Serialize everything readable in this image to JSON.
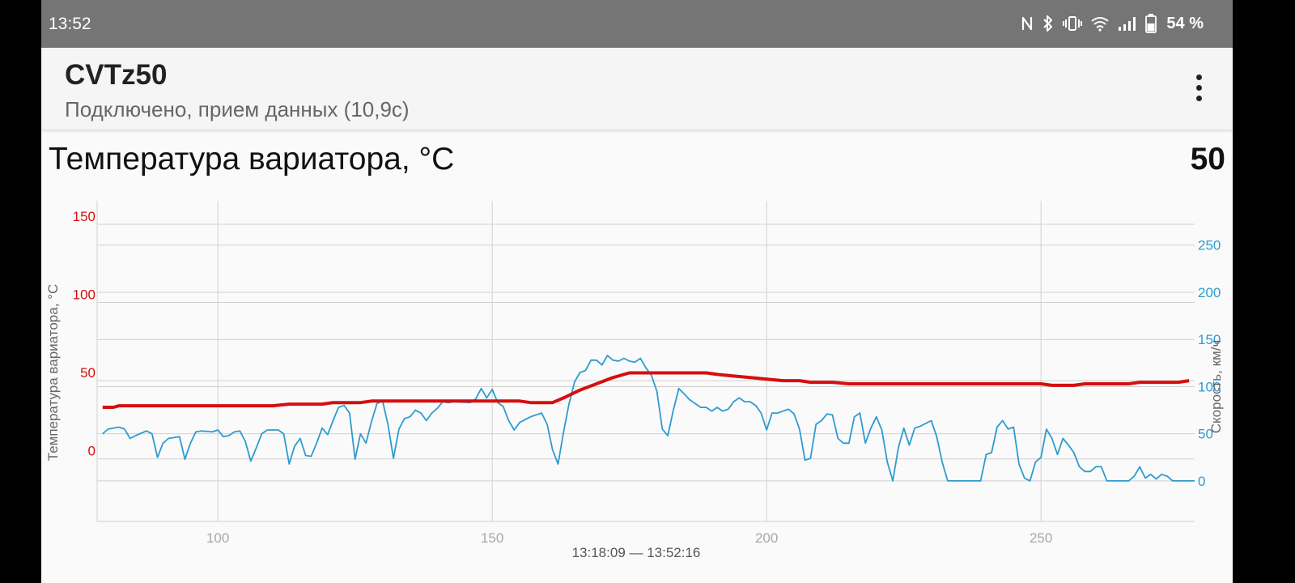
{
  "status_bar": {
    "time": "13:52",
    "battery_text": "54 %",
    "icons": [
      "nfc-icon",
      "bluetooth-icon",
      "vibrate-icon",
      "wifi-icon",
      "signal-icon",
      "battery-icon"
    ]
  },
  "app_bar": {
    "title": "CVTz50",
    "subtitle": "Подключено, прием данных (10,9с)",
    "menu_icon": "more-vert-icon"
  },
  "section": {
    "title": "Температура вариатора, °C",
    "value": "50"
  },
  "colors": {
    "temperature": "#d50f0f",
    "speed": "#2e9bd0",
    "grid": "#d0d0d0",
    "axis_text": "#a8a8a8"
  },
  "chart_data": {
    "type": "line",
    "time_range_label": "13:18:09 — 13:52:16",
    "x_ticks": [
      100,
      150,
      200,
      250
    ],
    "xlim": [
      78,
      278
    ],
    "y_left": {
      "label": "Температура вариатора, °C",
      "ticks": [
        0,
        50,
        100,
        150
      ],
      "ylim": [
        -40,
        165
      ]
    },
    "y_right": {
      "label": "Скорость, км/ч",
      "ticks": [
        0,
        50,
        100,
        150,
        200,
        250
      ],
      "ylim": [
        -43,
        297
      ]
    },
    "series": [
      {
        "axis": "left",
        "points": [
          [
            79,
            33
          ],
          [
            81,
            33
          ],
          [
            82,
            34
          ],
          [
            90,
            34
          ],
          [
            100,
            34
          ],
          [
            110,
            34
          ],
          [
            113,
            35
          ],
          [
            119,
            35
          ],
          [
            121,
            36
          ],
          [
            126,
            36
          ],
          [
            128,
            37
          ],
          [
            140,
            37
          ],
          [
            155,
            37
          ],
          [
            157,
            36
          ],
          [
            161,
            36
          ],
          [
            163,
            39
          ],
          [
            166,
            44
          ],
          [
            169,
            48
          ],
          [
            172,
            52
          ],
          [
            175,
            55
          ],
          [
            178,
            55
          ],
          [
            182,
            55
          ],
          [
            186,
            55
          ],
          [
            189,
            55
          ],
          [
            191,
            54
          ],
          [
            194,
            53
          ],
          [
            197,
            52
          ],
          [
            200,
            51
          ],
          [
            203,
            50
          ],
          [
            206,
            50
          ],
          [
            208,
            49
          ],
          [
            212,
            49
          ],
          [
            215,
            48
          ],
          [
            220,
            48
          ],
          [
            230,
            48
          ],
          [
            240,
            48
          ],
          [
            250,
            48
          ],
          [
            252,
            47
          ],
          [
            256,
            47
          ],
          [
            258,
            48
          ],
          [
            262,
            48
          ],
          [
            266,
            48
          ],
          [
            268,
            49
          ],
          [
            275,
            49
          ],
          [
            277,
            50
          ]
        ]
      },
      {
        "axis": "right",
        "points": [
          [
            79,
            50
          ],
          [
            80,
            55
          ],
          [
            82,
            57
          ],
          [
            83,
            55
          ],
          [
            84,
            45
          ],
          [
            85,
            48
          ],
          [
            87,
            53
          ],
          [
            88,
            50
          ],
          [
            89,
            25
          ],
          [
            90,
            40
          ],
          [
            91,
            45
          ],
          [
            93,
            47
          ],
          [
            94,
            23
          ],
          [
            95,
            40
          ],
          [
            96,
            52
          ],
          [
            97,
            53
          ],
          [
            99,
            52
          ],
          [
            100,
            54
          ],
          [
            101,
            47
          ],
          [
            102,
            48
          ],
          [
            103,
            52
          ],
          [
            104,
            53
          ],
          [
            105,
            42
          ],
          [
            106,
            21
          ],
          [
            107,
            35
          ],
          [
            108,
            50
          ],
          [
            109,
            54
          ],
          [
            111,
            54
          ],
          [
            112,
            50
          ],
          [
            113,
            18
          ],
          [
            114,
            37
          ],
          [
            115,
            45
          ],
          [
            116,
            27
          ],
          [
            117,
            26
          ],
          [
            118,
            40
          ],
          [
            119,
            56
          ],
          [
            120,
            49
          ],
          [
            121,
            64
          ],
          [
            122,
            78
          ],
          [
            123,
            80
          ],
          [
            124,
            72
          ],
          [
            125,
            23
          ],
          [
            126,
            50
          ],
          [
            127,
            40
          ],
          [
            128,
            63
          ],
          [
            129,
            82
          ],
          [
            130,
            85
          ],
          [
            131,
            60
          ],
          [
            132,
            24
          ],
          [
            133,
            55
          ],
          [
            134,
            66
          ],
          [
            135,
            68
          ],
          [
            136,
            75
          ],
          [
            137,
            72
          ],
          [
            138,
            64
          ],
          [
            139,
            72
          ],
          [
            140,
            77
          ],
          [
            141,
            84
          ],
          [
            142,
            83
          ],
          [
            143,
            84
          ],
          [
            146,
            83
          ],
          [
            147,
            87
          ],
          [
            148,
            98
          ],
          [
            149,
            88
          ],
          [
            150,
            97
          ],
          [
            151,
            83
          ],
          [
            152,
            79
          ],
          [
            153,
            64
          ],
          [
            154,
            54
          ],
          [
            155,
            62
          ],
          [
            157,
            68
          ],
          [
            159,
            72
          ],
          [
            160,
            60
          ],
          [
            161,
            33
          ],
          [
            162,
            18
          ],
          [
            163,
            52
          ],
          [
            164,
            82
          ],
          [
            165,
            105
          ],
          [
            166,
            115
          ],
          [
            167,
            117
          ],
          [
            168,
            128
          ],
          [
            169,
            128
          ],
          [
            170,
            123
          ],
          [
            171,
            133
          ],
          [
            172,
            128
          ],
          [
            173,
            127
          ],
          [
            174,
            130
          ],
          [
            175,
            127
          ],
          [
            176,
            126
          ],
          [
            177,
            130
          ],
          [
            178,
            120
          ],
          [
            179,
            112
          ],
          [
            180,
            95
          ],
          [
            181,
            55
          ],
          [
            182,
            48
          ],
          [
            183,
            75
          ],
          [
            184,
            98
          ],
          [
            185,
            92
          ],
          [
            186,
            86
          ],
          [
            188,
            78
          ],
          [
            189,
            78
          ],
          [
            190,
            74
          ],
          [
            191,
            78
          ],
          [
            192,
            74
          ],
          [
            193,
            76
          ],
          [
            194,
            84
          ],
          [
            195,
            88
          ],
          [
            196,
            84
          ],
          [
            197,
            84
          ],
          [
            198,
            80
          ],
          [
            199,
            72
          ],
          [
            200,
            54
          ],
          [
            201,
            72
          ],
          [
            202,
            72
          ],
          [
            203,
            74
          ],
          [
            204,
            76
          ],
          [
            205,
            71
          ],
          [
            206,
            55
          ],
          [
            207,
            22
          ],
          [
            208,
            24
          ],
          [
            209,
            60
          ],
          [
            210,
            64
          ],
          [
            211,
            71
          ],
          [
            212,
            70
          ],
          [
            213,
            45
          ],
          [
            214,
            40
          ],
          [
            215,
            40
          ],
          [
            216,
            68
          ],
          [
            217,
            72
          ],
          [
            218,
            40
          ],
          [
            219,
            56
          ],
          [
            220,
            68
          ],
          [
            221,
            54
          ],
          [
            222,
            20
          ],
          [
            223,
            0
          ],
          [
            224,
            35
          ],
          [
            225,
            56
          ],
          [
            226,
            38
          ],
          [
            227,
            56
          ],
          [
            228,
            58
          ],
          [
            229,
            61
          ],
          [
            230,
            64
          ],
          [
            231,
            47
          ],
          [
            232,
            20
          ],
          [
            233,
            0
          ],
          [
            236,
            0
          ],
          [
            238,
            0
          ],
          [
            239,
            0
          ],
          [
            240,
            28
          ],
          [
            241,
            30
          ],
          [
            242,
            57
          ],
          [
            243,
            64
          ],
          [
            244,
            55
          ],
          [
            245,
            57
          ],
          [
            246,
            18
          ],
          [
            247,
            3
          ],
          [
            248,
            0
          ],
          [
            249,
            20
          ],
          [
            250,
            25
          ],
          [
            251,
            55
          ],
          [
            252,
            45
          ],
          [
            253,
            28
          ],
          [
            254,
            45
          ],
          [
            255,
            38
          ],
          [
            256,
            30
          ],
          [
            257,
            15
          ],
          [
            258,
            10
          ],
          [
            259,
            10
          ],
          [
            260,
            15
          ],
          [
            261,
            15
          ],
          [
            262,
            0
          ],
          [
            264,
            0
          ],
          [
            266,
            0
          ],
          [
            267,
            5
          ],
          [
            268,
            15
          ],
          [
            269,
            3
          ],
          [
            270,
            7
          ],
          [
            271,
            2
          ],
          [
            272,
            7
          ],
          [
            273,
            5
          ],
          [
            274,
            0
          ],
          [
            276,
            0
          ],
          [
            278,
            0
          ],
          [
            280,
            3
          ],
          [
            282,
            2
          ],
          [
            283,
            0
          ],
          [
            285,
            0
          ],
          [
            288,
            0
          ]
        ]
      }
    ]
  }
}
